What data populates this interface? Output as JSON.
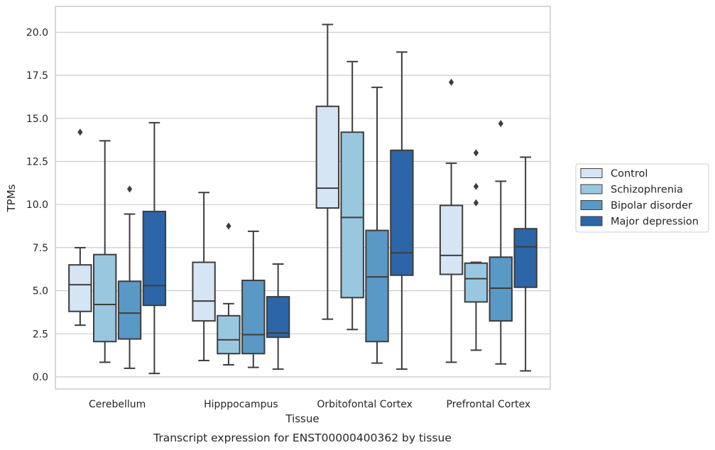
{
  "caption": "Transcript expression for ENST00000400362 by tissue",
  "chart_data": {
    "type": "box",
    "xlabel": "Tissue",
    "ylabel": "TPMs",
    "ylim": [
      -0.7,
      21.5
    ],
    "yticks": [
      0.0,
      2.5,
      5.0,
      7.5,
      10.0,
      12.5,
      15.0,
      17.5,
      20.0
    ],
    "ytick_labels": [
      "0.0",
      "2.5",
      "5.0",
      "7.5",
      "10.0",
      "12.5",
      "15.0",
      "17.5",
      "20.0"
    ],
    "grid": "horizontal",
    "legend_position": "right",
    "categories": [
      "Cerebellum",
      "Hipppocampus",
      "Orbitofontal Cortex",
      "Prefrontal Cortex"
    ],
    "series": [
      {
        "name": "Control",
        "color": "#d6e5f3",
        "boxes": [
          {
            "whislo": 3.0,
            "q1": 3.8,
            "med": 5.35,
            "q3": 6.5,
            "whishi": 7.5,
            "fliers": [
              14.2
            ]
          },
          {
            "whislo": 0.95,
            "q1": 3.25,
            "med": 4.4,
            "q3": 6.65,
            "whishi": 10.7,
            "fliers": []
          },
          {
            "whislo": 3.35,
            "q1": 9.8,
            "med": 10.95,
            "q3": 15.7,
            "whishi": 20.45,
            "fliers": []
          },
          {
            "whislo": 0.85,
            "q1": 5.95,
            "med": 7.05,
            "q3": 9.95,
            "whishi": 12.4,
            "fliers": [
              17.1
            ]
          }
        ]
      },
      {
        "name": "Schizophrenia",
        "color": "#9ac7e0",
        "boxes": [
          {
            "whislo": 0.85,
            "q1": 2.05,
            "med": 4.2,
            "q3": 7.1,
            "whishi": 13.7,
            "fliers": []
          },
          {
            "whislo": 0.7,
            "q1": 1.35,
            "med": 2.15,
            "q3": 3.55,
            "whishi": 4.25,
            "fliers": [
              8.75
            ]
          },
          {
            "whislo": 2.75,
            "q1": 4.6,
            "med": 9.25,
            "q3": 14.2,
            "whishi": 18.3,
            "fliers": []
          },
          {
            "whislo": 1.55,
            "q1": 4.35,
            "med": 5.7,
            "q3": 6.6,
            "whishi": 6.65,
            "fliers": [
              13.0,
              11.05,
              10.1
            ]
          }
        ]
      },
      {
        "name": "Bipolar disorder",
        "color": "#5a98c5",
        "boxes": [
          {
            "whislo": 0.5,
            "q1": 2.2,
            "med": 3.7,
            "q3": 5.55,
            "whishi": 9.45,
            "fliers": [
              10.9
            ]
          },
          {
            "whislo": 0.55,
            "q1": 1.35,
            "med": 2.45,
            "q3": 5.6,
            "whishi": 8.45,
            "fliers": []
          },
          {
            "whislo": 0.8,
            "q1": 2.05,
            "med": 5.8,
            "q3": 8.5,
            "whishi": 16.8,
            "fliers": []
          },
          {
            "whislo": 0.75,
            "q1": 3.25,
            "med": 5.15,
            "q3": 6.95,
            "whishi": 11.35,
            "fliers": [
              14.7
            ]
          }
        ]
      },
      {
        "name": "Major depression",
        "color": "#2c66a8",
        "boxes": [
          {
            "whislo": 0.2,
            "q1": 4.15,
            "med": 5.3,
            "q3": 9.6,
            "whishi": 14.75,
            "fliers": []
          },
          {
            "whislo": 0.45,
            "q1": 2.3,
            "med": 2.55,
            "q3": 4.65,
            "whishi": 6.55,
            "fliers": []
          },
          {
            "whislo": 0.45,
            "q1": 5.9,
            "med": 7.2,
            "q3": 13.15,
            "whishi": 18.85,
            "fliers": []
          },
          {
            "whislo": 0.35,
            "q1": 5.2,
            "med": 7.55,
            "q3": 8.6,
            "whishi": 12.75,
            "fliers": []
          }
        ]
      }
    ]
  }
}
